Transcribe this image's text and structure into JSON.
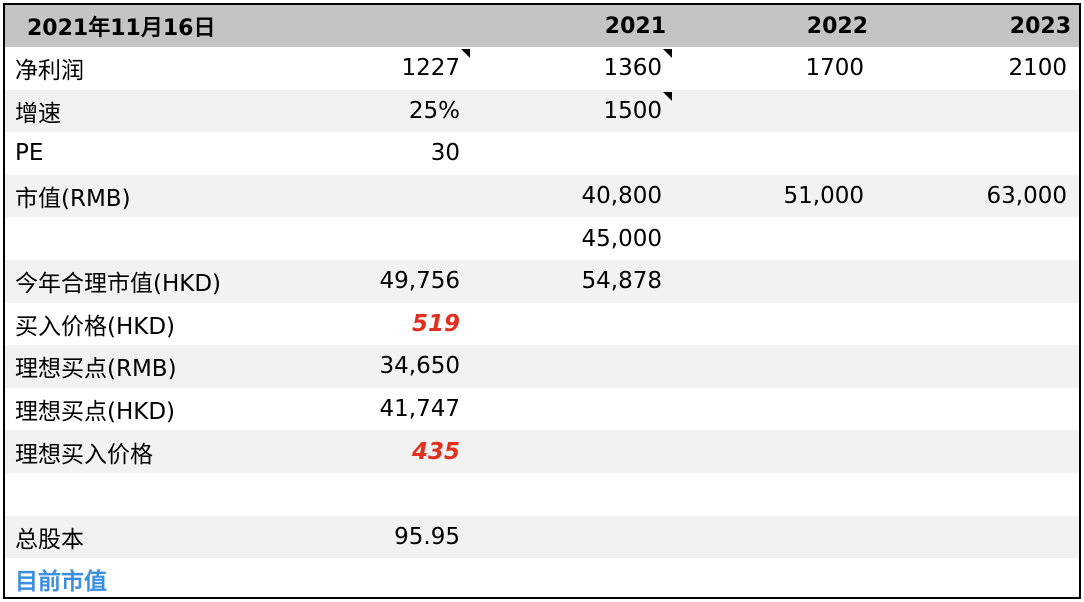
{
  "header": {
    "date": "2021年11月16日",
    "col2": "",
    "y2021": "2021",
    "y2022": "2022",
    "y2023": "2023"
  },
  "rows": [
    {
      "label": "净利润",
      "c1": "1227",
      "c2": "1360",
      "c3": "1700",
      "c4": "2100"
    },
    {
      "label": "增速",
      "c1": "25%",
      "c2": "1500",
      "c3": "",
      "c4": ""
    },
    {
      "label": "PE",
      "c1": "30",
      "c2": "",
      "c3": "",
      "c4": ""
    },
    {
      "label": "市值(RMB)",
      "c1": "",
      "c2": "40,800",
      "c3": "51,000",
      "c4": "63,000"
    },
    {
      "label": "",
      "c1": "",
      "c2": "45,000",
      "c3": "",
      "c4": ""
    },
    {
      "label": "今年合理市值(HKD)",
      "c1": "49,756",
      "c2": "54,878",
      "c3": "",
      "c4": ""
    },
    {
      "label": "买入价格(HKD)",
      "c1": "519",
      "c2": "",
      "c3": "",
      "c4": ""
    },
    {
      "label": "理想买点(RMB)",
      "c1": "34,650",
      "c2": "",
      "c3": "",
      "c4": ""
    },
    {
      "label": "理想买点(HKD)",
      "c1": "41,747",
      "c2": "",
      "c3": "",
      "c4": ""
    },
    {
      "label": "理想买入价格",
      "c1": "435",
      "c2": "",
      "c3": "",
      "c4": ""
    },
    {
      "label": "",
      "c1": "",
      "c2": "",
      "c3": "",
      "c4": ""
    },
    {
      "label": "总股本",
      "c1": "95.95",
      "c2": "",
      "c3": "",
      "c4": ""
    },
    {
      "label": "目前市值",
      "c1": "",
      "c2": "",
      "c3": "",
      "c4": ""
    }
  ],
  "colors": {
    "header_bg": "#c4c4c4",
    "alt_row_bg": "#f2f2f2",
    "red_value": "#e0311f",
    "blue_label": "#3b8ee0"
  }
}
